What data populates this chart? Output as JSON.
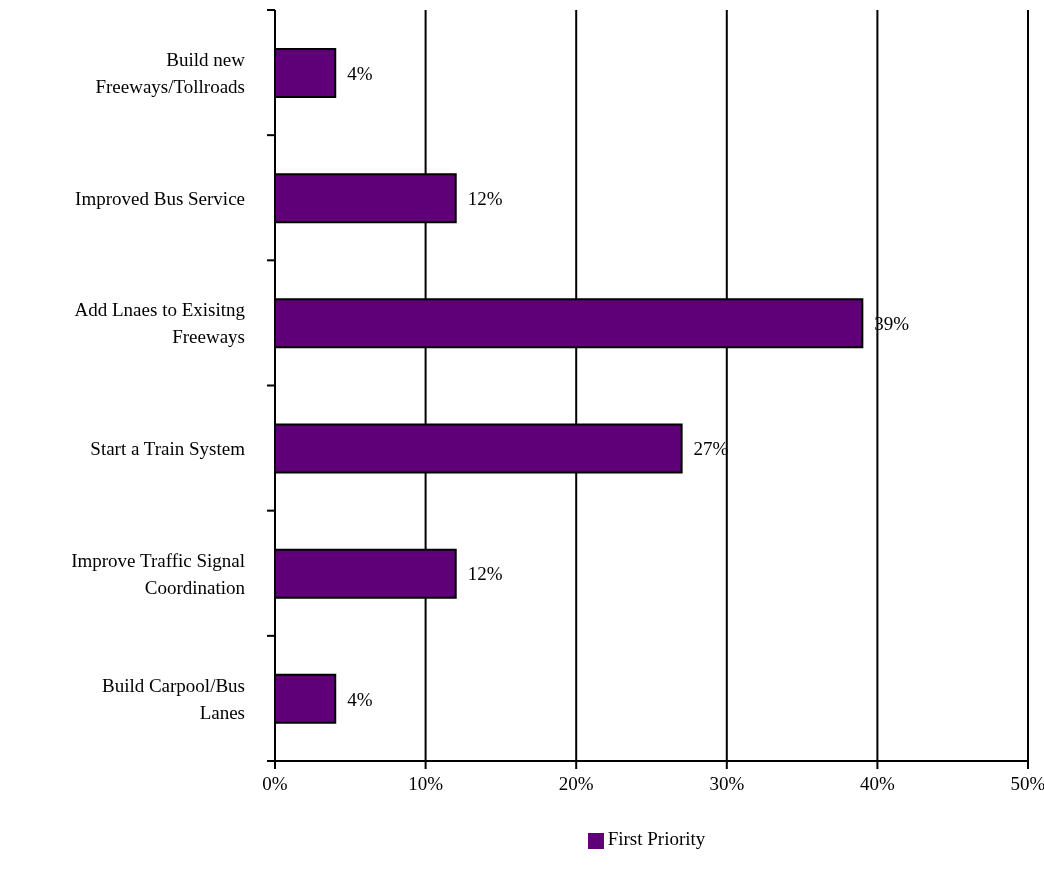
{
  "chart_data": {
    "type": "bar",
    "orientation": "horizontal",
    "categories": [
      "Build new Freeways/Tollroads",
      "Improved Bus Service",
      "Add Lnaes to Exisitng Freeways",
      "Start a Train System",
      "Improve Traffic Signal Coordination",
      "Build Carpool/Bus Lanes"
    ],
    "series": [
      {
        "name": "First Priority",
        "color": "#5f0078",
        "values": [
          4,
          12,
          39,
          27,
          12,
          4
        ],
        "value_labels": [
          "4%",
          "12%",
          "39%",
          "27%",
          "12%",
          "4%"
        ]
      }
    ],
    "xlim": [
      0,
      50
    ],
    "xticks": [
      {
        "value": 0,
        "label": "0%"
      },
      {
        "value": 10,
        "label": "10%"
      },
      {
        "value": 20,
        "label": "20%"
      },
      {
        "value": 30,
        "label": "30%"
      },
      {
        "value": 40,
        "label": "40%"
      },
      {
        "value": 50,
        "label": "50%"
      }
    ],
    "grid": "x",
    "legend": "bottom"
  }
}
